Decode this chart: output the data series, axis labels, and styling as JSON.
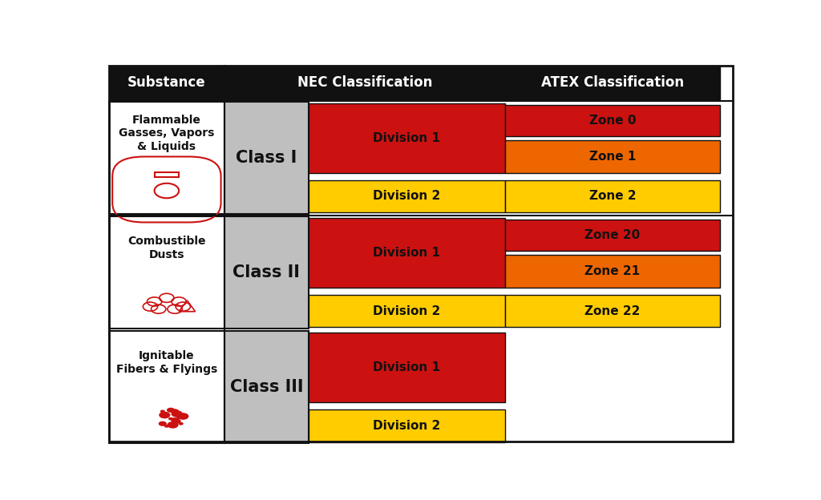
{
  "fig_w": 10.24,
  "fig_h": 6.24,
  "dpi": 100,
  "bg_color": "#ffffff",
  "header_bg": "#111111",
  "header_text_color": "#ffffff",
  "header_fontsize": 12,
  "class_fontsize": 15,
  "div_fontsize": 11,
  "substance_fontsize": 10,
  "gray_cell": "#bfbfbf",
  "red_cell": "#cc1111",
  "orange_cell": "#ee6600",
  "yellow_cell": "#ffcc00",
  "text_dark": "#111111",
  "border_color": "#111111",
  "border_lw": 1.5,
  "headers": [
    "Substance",
    "NEC Classification",
    "ATEX Classification"
  ],
  "rows": [
    {
      "substance": "Flammable\nGasses, Vapors\n& Liquids",
      "class_label": "Class I",
      "zones": [
        {
          "label": "Zone 0",
          "color": "#cc1111"
        },
        {
          "label": "Zone 1",
          "color": "#ee6600"
        },
        {
          "label": "Zone 2",
          "color": "#ffcc00"
        }
      ]
    },
    {
      "substance": "Combustible\nDusts",
      "class_label": "Class II",
      "zones": [
        {
          "label": "Zone 20",
          "color": "#cc1111"
        },
        {
          "label": "Zone 21",
          "color": "#ee6600"
        },
        {
          "label": "Zone 22",
          "color": "#ffcc00"
        }
      ]
    },
    {
      "substance": "Ignitable\nFibers & Flyings",
      "class_label": "Class III",
      "zones": []
    }
  ]
}
